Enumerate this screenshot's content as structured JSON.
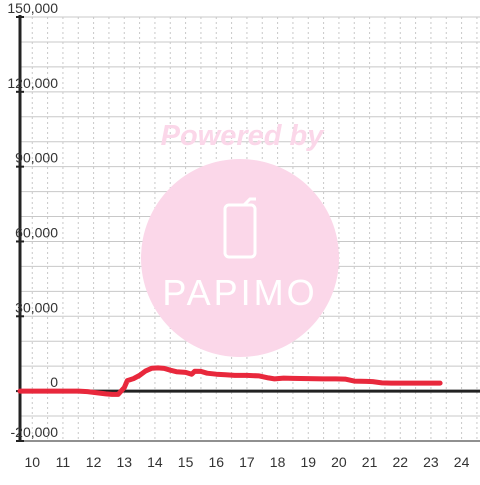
{
  "chart_data": {
    "type": "line",
    "title": "",
    "xlabel": "",
    "ylabel": "",
    "xlim": [
      9.6,
      24.6
    ],
    "ylim": [
      -20000,
      150000
    ],
    "y_tick_values": [
      150000,
      120000,
      90000,
      60000,
      30000,
      0,
      -20000
    ],
    "y_tick_labels": [
      "150,000",
      "120,000",
      "90,000",
      "60,000",
      "30,000",
      "0",
      "-20,000"
    ],
    "x_tick_values": [
      10,
      11,
      12,
      13,
      14,
      15,
      16,
      17,
      18,
      19,
      20,
      21,
      22,
      23,
      24
    ],
    "x_tick_labels": [
      "10",
      "11",
      "12",
      "13",
      "14",
      "15",
      "16",
      "17",
      "18",
      "19",
      "20",
      "21",
      "22",
      "23",
      "24"
    ],
    "grid": true,
    "line_color": "#e8283c",
    "series": [
      {
        "x": [
          9.6,
          10.0,
          10.5,
          11.0,
          11.5,
          11.8,
          12.0,
          12.2,
          12.4,
          12.6,
          12.8,
          13.0,
          13.1,
          13.3,
          13.5,
          13.7,
          13.9,
          14.1,
          14.3,
          14.5,
          14.7,
          15.0,
          15.2,
          15.3,
          15.5,
          15.7,
          16.0,
          16.3,
          16.6,
          17.0,
          17.4,
          17.7,
          17.9,
          18.2,
          18.5,
          19.0,
          19.5,
          19.9,
          20.2,
          20.5,
          20.9,
          21.1,
          21.4,
          21.7,
          22.0,
          22.5,
          23.0,
          23.3
        ],
        "y": [
          0,
          0,
          0,
          0,
          0,
          -200,
          -500,
          -800,
          -1100,
          -1300,
          -1300,
          1400,
          4200,
          5000,
          6300,
          8100,
          9200,
          9300,
          9100,
          8400,
          7800,
          7500,
          6800,
          8000,
          7900,
          7200,
          6800,
          6600,
          6300,
          6300,
          6100,
          5300,
          4900,
          5200,
          5100,
          5000,
          4900,
          4900,
          4800,
          4000,
          3900,
          3800,
          3300,
          3200,
          3200,
          3200,
          3200,
          3200
        ]
      }
    ]
  },
  "watermark": {
    "caption": "Powered by",
    "brand": "PAPIMO",
    "color": "#fbd7e9"
  },
  "colors": {
    "grid": "#c8c8c8",
    "axis": "#222222",
    "tick_label": "#333333",
    "background": "#ffffff"
  }
}
